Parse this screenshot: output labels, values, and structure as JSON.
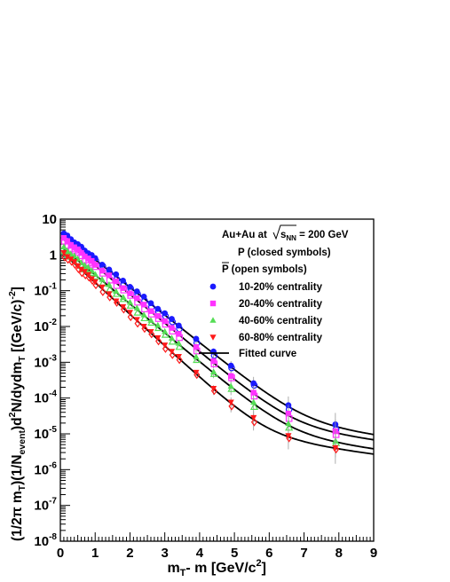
{
  "chart_data": {
    "type": "scatter",
    "xlabel_main": "m",
    "xlabel_sub": "T",
    "xlabel_rest": "- m [GeV/c",
    "xlabel_sup": "2",
    "xlabel_end": "]",
    "ylabel": {
      "p1": "(1/2π m",
      "p1_sub": "T",
      "p2": ")(1/N",
      "p2_sub": "event",
      "p3": ")d",
      "p3_sup": "2",
      "p4": "N/dydm",
      "p4_sub": "T",
      "p5": " [(GeV/c)",
      "p5_sup": "-2",
      "p6": "]"
    },
    "xlim": [
      0,
      9
    ],
    "ylim": [
      1e-08,
      10
    ],
    "ylog": true,
    "grid": false,
    "legend_position": "top-right",
    "x_ticks": [
      "0",
      "1",
      "2",
      "3",
      "4",
      "5",
      "6",
      "7",
      "8",
      "9"
    ],
    "y_ticks": [
      {
        "base": "10",
        "exp": "-8"
      },
      {
        "base": "10",
        "exp": "-7"
      },
      {
        "base": "10",
        "exp": "-6"
      },
      {
        "base": "10",
        "exp": "-5"
      },
      {
        "base": "10",
        "exp": "-4"
      },
      {
        "base": "10",
        "exp": "-3"
      },
      {
        "base": "10",
        "exp": "-2"
      },
      {
        "base": "10",
        "exp": "-1"
      },
      {
        "base": "1",
        "exp": ""
      },
      {
        "base": "10",
        "exp": ""
      }
    ],
    "annotations": {
      "system": "Au+Au at ",
      "snn": "s",
      "snn_sub": "NN",
      "energy": " = 200 GeV",
      "p_label": "P  (closed symbols)",
      "pbar_label": "P",
      "pbar_rest": " (open symbols)"
    },
    "series": [
      {
        "name": "10-20% centrality",
        "marker": "circle",
        "color": "#1a1aff",
        "fit": {
          "A": 4.4,
          "T": 0.56
        }
      },
      {
        "name": "20-40% centrality",
        "marker": "square",
        "color": "#ff33ff",
        "fit": {
          "A": 3.2,
          "T": 0.54
        }
      },
      {
        "name": "40-60% centrality",
        "marker": "triangle-up",
        "color": "#55dd55",
        "fit": {
          "A": 1.8,
          "T": 0.535
        }
      },
      {
        "name": "60-80% centrality",
        "marker": "triangle-down",
        "color": "#ff1a1a",
        "fit": {
          "A": 1.3,
          "T": 0.49
        }
      }
    ],
    "fit_label": "Fitted curve",
    "x_points": [
      0.1,
      0.2,
      0.3,
      0.4,
      0.5,
      0.6,
      0.7,
      0.8,
      0.9,
      1.0,
      1.2,
      1.4,
      1.6,
      1.8,
      2.0,
      2.2,
      2.4,
      2.6,
      2.8,
      3.0,
      3.2,
      3.4,
      3.9,
      4.4,
      4.9,
      5.55,
      6.55,
      7.9
    ],
    "open_offset_x": 0.02
  }
}
